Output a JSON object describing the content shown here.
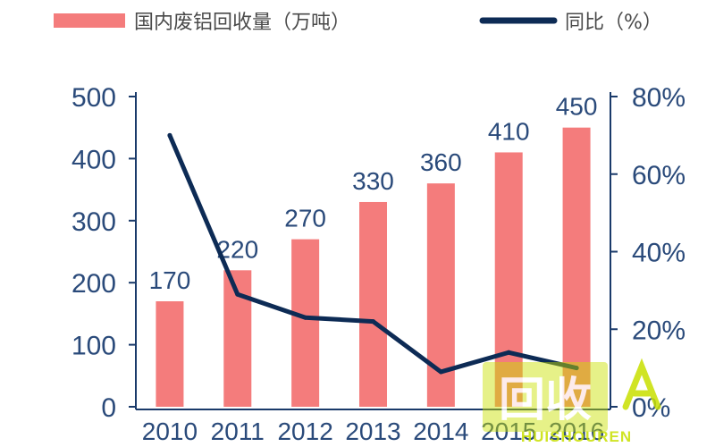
{
  "chart_data": {
    "type": "bar",
    "categories": [
      "2010",
      "2011",
      "2012",
      "2013",
      "2014",
      "2015",
      "2016"
    ],
    "series": [
      {
        "name": "国内废铝回收量（万吨）",
        "kind": "bar",
        "axis": "left",
        "values": [
          170,
          220,
          270,
          330,
          360,
          410,
          450
        ],
        "color": "#f47c7c"
      },
      {
        "name": "同比（%）",
        "kind": "line",
        "axis": "right",
        "values": [
          70,
          29,
          23,
          22,
          9,
          14,
          10
        ],
        "color": "#0d2b55"
      }
    ],
    "data_labels": [
      "170",
      "220",
      "270",
      "330",
      "360",
      "410",
      "450"
    ],
    "y_left": {
      "ylim": [
        0,
        500
      ],
      "ticks": [
        "0",
        "100",
        "200",
        "300",
        "400",
        "500"
      ]
    },
    "y_right": {
      "ylim": [
        0,
        80
      ],
      "ticks": [
        "0%",
        "20%",
        "40%",
        "60%",
        "80%"
      ]
    },
    "legend": "top",
    "grid": false
  },
  "watermark": {
    "main": "回收",
    "sub": "HUISHOUREN",
    "color": "#c8e000"
  }
}
